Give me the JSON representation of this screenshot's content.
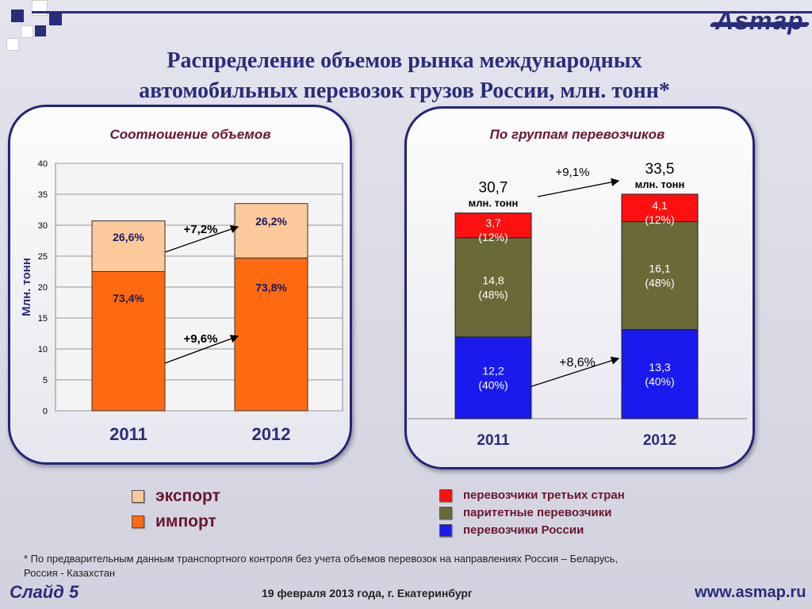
{
  "header": {
    "title_line1": "Распределение объемов рынка международных",
    "title_line2": "автомобильных перевозок грузов России, млн. тонн*",
    "logo_text": "Asmap"
  },
  "colors": {
    "dark_blue": "#2a2d7a",
    "export": "#fbc99a",
    "import": "#ff6a10",
    "third_countries": "#ff1010",
    "parity": "#6a6a38",
    "russia": "#1a1aee",
    "panel_title": "#6a1530"
  },
  "chart_data": [
    {
      "type": "bar",
      "stacked": true,
      "title": "Соотношение объемов",
      "ylabel": "Млн. тонн",
      "xlabel": "",
      "ylim": [
        0,
        40
      ],
      "yticks": [
        "0",
        "5",
        "10",
        "15",
        "20",
        "25",
        "30",
        "35",
        "40"
      ],
      "grid": true,
      "categories": [
        "2011",
        "2012"
      ],
      "series": [
        {
          "name": "импорт",
          "values": [
            22.5,
            24.7
          ],
          "labels": [
            "73,4%",
            "73,8%"
          ]
        },
        {
          "name": "экспорт",
          "values": [
            8.2,
            8.8
          ],
          "labels": [
            "26,6%",
            "26,2%"
          ]
        }
      ],
      "growth_labels": {
        "import": "+9,6%",
        "export": "+7,2%"
      },
      "legend": [
        "экспорт",
        "импорт"
      ],
      "legend_position": "bottom-left"
    },
    {
      "type": "bar",
      "stacked": true,
      "title": "По группам перевозчиков",
      "xlabel": "",
      "ylabel": "",
      "categories": [
        "2011",
        "2012"
      ],
      "totals": [
        "30,7",
        "33,5"
      ],
      "totals_unit": "млн. тонн",
      "total_values": [
        30.7,
        33.5
      ],
      "series": [
        {
          "name": "перевозчики России",
          "values": [
            12.2,
            13.3
          ],
          "labels": [
            "12,2",
            "13,3"
          ],
          "shares": [
            "(40%)",
            "(40%)"
          ]
        },
        {
          "name": "паритетные перевозчики",
          "values": [
            14.8,
            16.1
          ],
          "labels": [
            "14,8",
            "16,1"
          ],
          "shares": [
            "(48%)",
            "(48%)"
          ]
        },
        {
          "name": "перевозчики третьих стран",
          "values": [
            3.7,
            4.1
          ],
          "labels": [
            "3,7",
            "4,1"
          ],
          "shares": [
            "(12%)",
            "(12%)"
          ]
        }
      ],
      "growth_labels": {
        "total": "+9,1%",
        "russia": "+8,6%"
      },
      "legend": [
        "перевозчики третьих стран",
        "паритетные перевозчики",
        "перевозчики России"
      ],
      "legend_position": "bottom-right"
    }
  ],
  "footer": {
    "note_line1": "* По предварительным  данным транспортного контроля без учета объемов перевозок на направлениях Россия – Беларусь,",
    "note_line2": "Россия - Казахстан",
    "slide": "Слайд 5",
    "date": "19 февраля 2013 года,   г. Екатеринбург",
    "url": "www.asmap.ru"
  }
}
